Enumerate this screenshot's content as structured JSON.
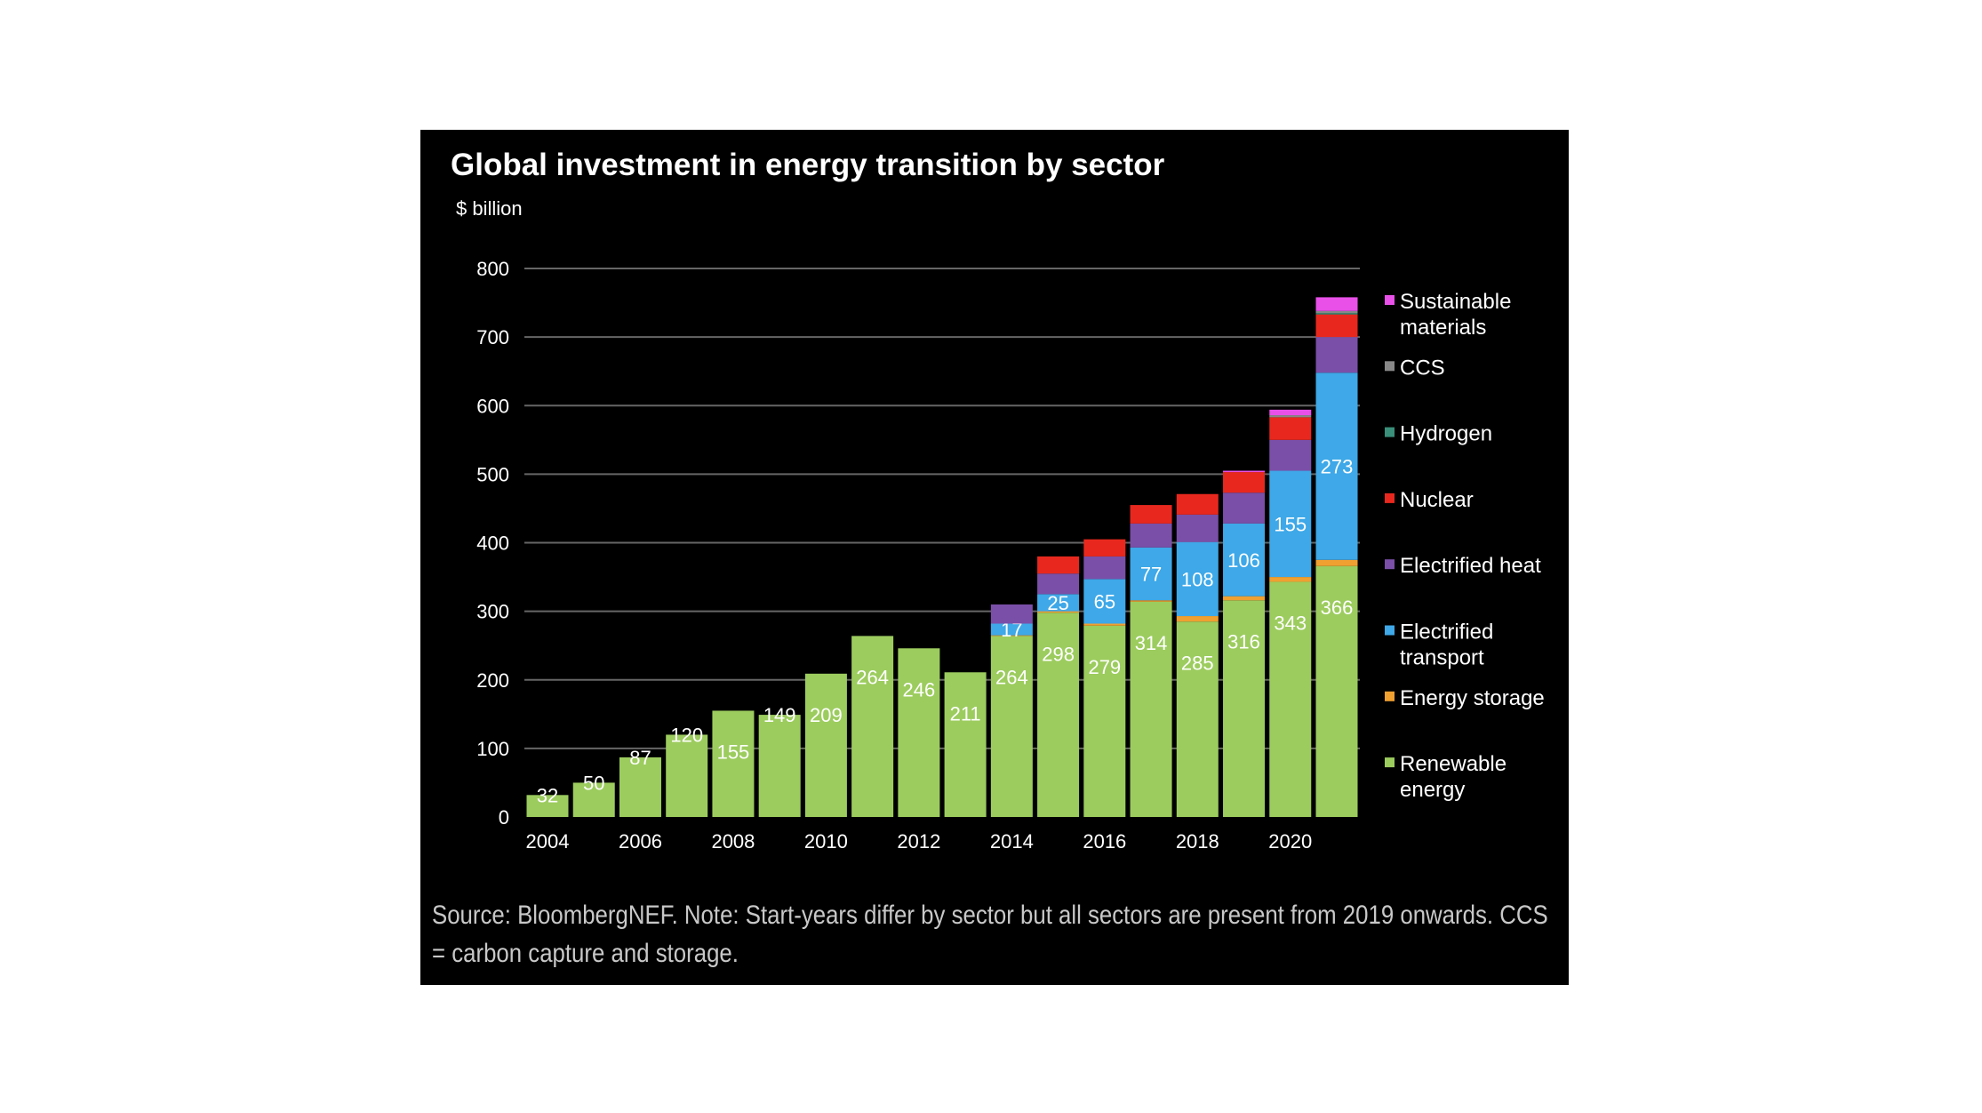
{
  "chart_data": {
    "type": "bar",
    "stacked": true,
    "title": "Global investment in energy transition by sector",
    "ylabel": "$ billion",
    "xlabel": "",
    "ylim": [
      0,
      800
    ],
    "yticks": [
      0,
      100,
      200,
      300,
      400,
      500,
      600,
      700,
      800
    ],
    "grid": true,
    "legend_position": "right",
    "categories": [
      "2004",
      "2005",
      "2006",
      "2007",
      "2008",
      "2009",
      "2010",
      "2011",
      "2012",
      "2013",
      "2014",
      "2015",
      "2016",
      "2017",
      "2018",
      "2019",
      "2020",
      "2021"
    ],
    "xtick_labels": [
      "2004",
      "2006",
      "2008",
      "2010",
      "2012",
      "2014",
      "2016",
      "2018",
      "2020"
    ],
    "series": [
      {
        "name": "Renewable energy",
        "color": "#9ccc5e",
        "values": [
          32,
          50,
          87,
          120,
          155,
          149,
          209,
          264,
          246,
          211,
          264,
          298,
          279,
          314,
          285,
          316,
          343,
          366
        ],
        "labeled": true
      },
      {
        "name": "Energy storage",
        "color": "#f0a030",
        "values": [
          0,
          0,
          0,
          0,
          0,
          0,
          0,
          0,
          0,
          0,
          1,
          2,
          3,
          2,
          8,
          6,
          7,
          9
        ],
        "labeled": false
      },
      {
        "name": "Electrified transport",
        "color": "#3ea8e8",
        "values": [
          0,
          0,
          0,
          0,
          0,
          0,
          0,
          0,
          0,
          0,
          17,
          25,
          65,
          77,
          108,
          106,
          155,
          273
        ],
        "labeled": true
      },
      {
        "name": "Electrified heat",
        "color": "#7a4fa8",
        "values": [
          0,
          0,
          0,
          0,
          0,
          0,
          0,
          0,
          0,
          0,
          28,
          30,
          33,
          35,
          40,
          45,
          45,
          52
        ],
        "labeled": false
      },
      {
        "name": "Nuclear",
        "color": "#e8281e",
        "values": [
          0,
          0,
          0,
          0,
          0,
          0,
          0,
          0,
          0,
          0,
          0,
          25,
          25,
          27,
          30,
          30,
          33,
          33
        ],
        "labeled": false
      },
      {
        "name": "Hydrogen",
        "color": "#3a8f7a",
        "values": [
          0,
          0,
          0,
          0,
          0,
          0,
          0,
          0,
          0,
          0,
          0,
          0,
          0,
          0,
          0,
          0,
          0,
          2
        ],
        "labeled": false
      },
      {
        "name": "CCS",
        "color": "#888888",
        "values": [
          0,
          0,
          0,
          0,
          0,
          0,
          0,
          0,
          0,
          0,
          0,
          0,
          0,
          0,
          0,
          0,
          3,
          3
        ],
        "labeled": false
      },
      {
        "name": "Sustainable materials",
        "color": "#e850e8",
        "values": [
          0,
          0,
          0,
          0,
          0,
          0,
          0,
          0,
          0,
          0,
          0,
          0,
          0,
          0,
          0,
          2,
          8,
          20
        ],
        "labeled": false
      }
    ],
    "legend": [
      {
        "label": [
          "Sustainable",
          "materials"
        ],
        "color": "#e850e8"
      },
      {
        "label": [
          "CCS"
        ],
        "color": "#888888"
      },
      {
        "label": [
          "Hydrogen"
        ],
        "color": "#3a8f7a"
      },
      {
        "label": [
          "Nuclear"
        ],
        "color": "#e8281e"
      },
      {
        "label": [
          "Electrified heat"
        ],
        "color": "#7a4fa8"
      },
      {
        "label": [
          "Electrified",
          "transport"
        ],
        "color": "#3ea8e8"
      },
      {
        "label": [
          "Energy storage"
        ],
        "color": "#f0a030"
      },
      {
        "label": [
          "Renewable",
          "energy"
        ],
        "color": "#9ccc5e"
      }
    ]
  },
  "source": "Source: BloombergNEF. Note: Start-years differ by sector but all sectors are present from 2019 onwards. CCS = carbon capture and storage."
}
